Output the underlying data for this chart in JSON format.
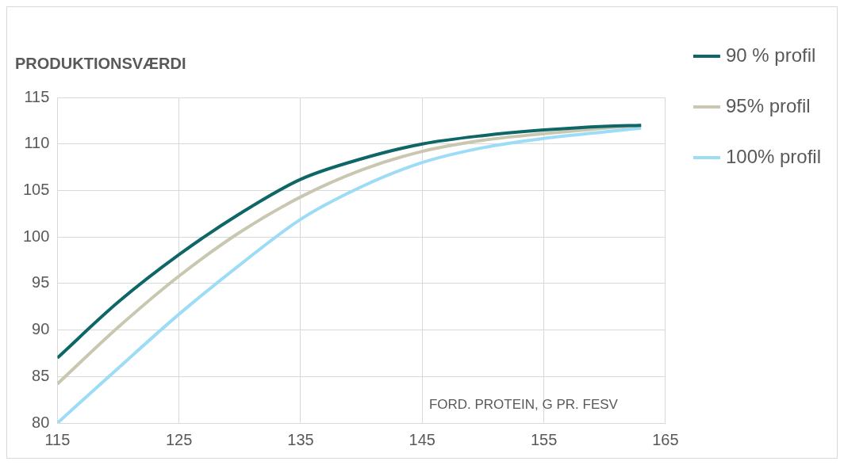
{
  "chart_data": {
    "type": "line",
    "title": "PRODUKTIONSVÆRDI",
    "xlabel": "FORD. PROTEIN, G PR. FESV",
    "x": [
      115,
      120,
      125,
      130,
      135,
      140,
      145,
      150,
      155,
      160,
      163
    ],
    "series": [
      {
        "name": "90 % profil",
        "color": "#0e6766",
        "values": [
          87,
          93.0,
          98.1,
          102.5,
          106.2,
          108.4,
          110.0,
          110.9,
          111.5,
          111.9,
          112.0
        ]
      },
      {
        "name": "95% profil",
        "color": "#c9c7b0",
        "values": [
          84.2,
          90.3,
          95.8,
          100.5,
          104.3,
          107.2,
          109.2,
          110.4,
          111.1,
          111.7,
          112.0
        ]
      },
      {
        "name": "100% profil",
        "color": "#9ddcf6",
        "values": [
          80,
          85.9,
          91.7,
          97.0,
          101.9,
          105.4,
          108.0,
          109.6,
          110.6,
          111.3,
          111.7
        ]
      }
    ],
    "xlim": [
      115,
      165
    ],
    "xticks": [
      115,
      125,
      135,
      145,
      155,
      165
    ],
    "ylim": [
      80,
      115
    ],
    "yticks": [
      80,
      85,
      90,
      95,
      100,
      105,
      110,
      115
    ],
    "grid": true,
    "legend": "right",
    "marker": "none",
    "line_style": "solid"
  }
}
